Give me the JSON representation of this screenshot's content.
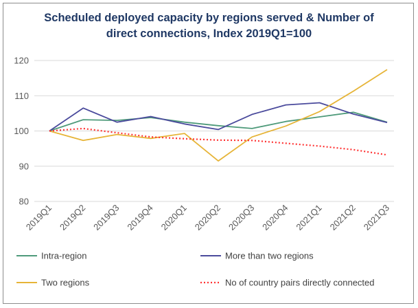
{
  "chart_data": {
    "type": "line",
    "title_lines": [
      "Scheduled deployed capacity by regions served & Number of",
      "direct connections, Index 2019Q1=100"
    ],
    "categories": [
      "2019Q1",
      "2019Q2",
      "2019Q3",
      "2019Q4",
      "2020Q1",
      "2020Q2",
      "2020Q3",
      "2020Q4",
      "2021Q1",
      "2021Q2",
      "2021Q3"
    ],
    "ylim": [
      80,
      120
    ],
    "yticks": [
      "80",
      "90",
      "100",
      "110",
      "120"
    ],
    "grid": true,
    "legend_position": "bottom",
    "series": [
      {
        "name": "Intra-region",
        "color": "#4e9a7a",
        "dash": "",
        "values": [
          100,
          103.2,
          103,
          103.8,
          102.5,
          101.5,
          100.7,
          102.7,
          104,
          105.3,
          102.5
        ]
      },
      {
        "name": "More than two regions",
        "color": "#4a4a9c",
        "dash": "",
        "values": [
          100,
          106.5,
          102.5,
          104.1,
          102,
          100.4,
          104.7,
          107.4,
          108,
          104.8,
          102.4
        ]
      },
      {
        "name": "Two regions",
        "color": "#e6b437",
        "dash": "",
        "values": [
          100,
          97.3,
          99,
          97.9,
          99.3,
          91.5,
          98.3,
          101.4,
          105.5,
          111.3,
          117.4
        ]
      },
      {
        "name": "No of country pairs directly connected",
        "color": "#ff3333",
        "dash": "2,3",
        "values": [
          100,
          100.7,
          99.5,
          98.3,
          97.8,
          97.4,
          97.3,
          96.5,
          95.7,
          94.7,
          93.2
        ]
      }
    ]
  }
}
